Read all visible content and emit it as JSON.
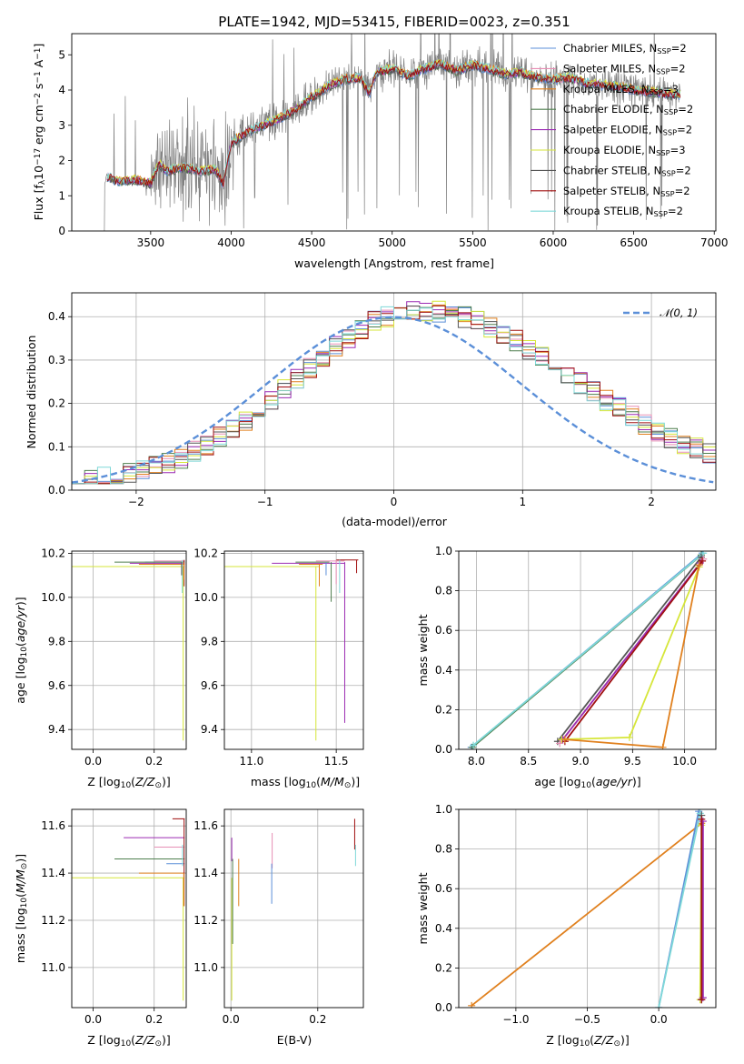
{
  "figure": {
    "title": "PLATE=1942, MJD=53415, FIBERID=0023, z=0.351"
  },
  "chart_data": [
    {
      "type": "line",
      "id": "spectrum",
      "xlabel": "wavelength [Angstrom, rest frame]",
      "ylabel_parts": [
        "Flux [f",
        "λ",
        "10",
        "−17",
        " erg cm",
        "−2",
        " s",
        "−1",
        " A",
        "−1",
        "]"
      ],
      "xlim": [
        3010,
        7010
      ],
      "ylim": [
        0,
        5.6
      ],
      "xticks": [
        3500,
        4000,
        4500,
        5000,
        5500,
        6000,
        6500,
        7000
      ],
      "yticks": [
        0,
        1,
        2,
        3,
        4,
        5
      ],
      "data_color": "#808080",
      "data_range": [
        3210,
        6790
      ],
      "continuum": {
        "x": [
          3210,
          3215,
          3230,
          3300,
          3400,
          3500,
          3550,
          3600,
          3700,
          3800,
          3900,
          3950,
          4000,
          4100,
          4200,
          4300,
          4400,
          4500,
          4600,
          4700,
          4800,
          4860,
          4900,
          5000,
          5100,
          5200,
          5300,
          5400,
          5500,
          5600,
          5700,
          5800,
          5900,
          6000,
          6100,
          6200,
          6300,
          6400,
          6500,
          6600,
          6700,
          6790
        ],
        "y": [
          0,
          1.3,
          1.55,
          1.4,
          1.45,
          1.35,
          1.9,
          1.7,
          1.8,
          1.7,
          1.75,
          1.35,
          2.5,
          2.8,
          3.0,
          3.2,
          3.45,
          3.8,
          4.1,
          4.3,
          4.35,
          3.9,
          4.5,
          4.6,
          4.4,
          4.6,
          4.75,
          4.55,
          4.7,
          4.6,
          4.45,
          4.5,
          4.35,
          4.3,
          4.35,
          4.2,
          4.15,
          4.1,
          4.0,
          3.95,
          3.9,
          3.85
        ]
      },
      "models": [
        {
          "name": "Chabrier MILES, N",
          "sub": "SSP",
          "post": "=2",
          "color": "#5b8fd8"
        },
        {
          "name": "Salpeter MILES, N",
          "sub": "SSP",
          "post": "=2",
          "color": "#e78fb5"
        },
        {
          "name": "Kroupa MILES, N",
          "sub": "SSP",
          "post": "=3",
          "color": "#e0801e"
        },
        {
          "name": "Chabrier ELODIE, N",
          "sub": "SSP",
          "post": "=2",
          "color": "#4f7f4f"
        },
        {
          "name": "Salpeter ELODIE, N",
          "sub": "SSP",
          "post": "=2",
          "color": "#9b2bb3"
        },
        {
          "name": "Kroupa ELODIE, N",
          "sub": "SSP",
          "post": "=3",
          "color": "#d6e63a"
        },
        {
          "name": "Chabrier STELIB, N",
          "sub": "SSP",
          "post": "=2",
          "color": "#555555"
        },
        {
          "name": "Salpeter STELIB, N",
          "sub": "SSP",
          "post": "=2",
          "color": "#a01010"
        },
        {
          "name": "Kroupa STELIB, N",
          "sub": "SSP",
          "post": "=2",
          "color": "#7fd8d8"
        }
      ]
    },
    {
      "type": "step-histogram",
      "id": "residuals",
      "xlabel": "(data-model)/error",
      "ylabel": "Normed distribution",
      "xlim": [
        -2.5,
        2.5
      ],
      "ylim": [
        0,
        0.455
      ],
      "xticks": [
        -2,
        -1,
        0,
        1,
        2
      ],
      "yticks": [
        0.0,
        0.1,
        0.2,
        0.3,
        0.4
      ],
      "legend": "𝒩(0, 1)",
      "gaussian_color": "#5b8fd8",
      "bin_width": 0.1
    },
    {
      "type": "errorbar",
      "id": "age-vs-Z",
      "xlabel": "Z [log",
      "xlim": [
        -0.07,
        0.305
      ],
      "ylim": [
        9.31,
        10.21
      ],
      "xticks": [
        0.0,
        0.2
      ],
      "yticks": [
        9.4,
        9.6,
        9.8,
        10.0,
        10.2
      ],
      "ylabel": "age  [log"
    },
    {
      "type": "errorbar",
      "id": "age-vs-mass",
      "xlabel": "mass [log",
      "xlim": [
        10.84,
        11.66
      ],
      "ylim": [
        9.31,
        10.21
      ],
      "xticks": [
        11.0,
        11.5
      ],
      "yticks": [
        9.4,
        9.6,
        9.8,
        10.0,
        10.2
      ]
    },
    {
      "type": "line",
      "id": "weight-vs-age",
      "xlabel": "age  [log",
      "ylabel": "mass weight",
      "xlim": [
        7.83,
        10.3
      ],
      "ylim": [
        0,
        1.0
      ],
      "xticks": [
        8.0,
        8.5,
        9.0,
        9.5,
        10.0
      ],
      "yticks": [
        0.0,
        0.2,
        0.4,
        0.6,
        0.8,
        1.0
      ]
    },
    {
      "type": "errorbar",
      "id": "mass-vs-Z",
      "xlabel": "Z [log",
      "ylabel": "mass [log",
      "xlim": [
        -0.07,
        0.305
      ],
      "ylim": [
        10.83,
        11.67
      ],
      "xticks": [
        0.0,
        0.2
      ],
      "yticks": [
        11.0,
        11.2,
        11.4,
        11.6
      ]
    },
    {
      "type": "errorbar",
      "id": "mass-vs-EBV",
      "xlabel": "E(B-V)",
      "xlim": [
        -0.015,
        0.305
      ],
      "ylim": [
        10.83,
        11.67
      ],
      "xticks": [
        0.0,
        0.2
      ],
      "yticks": [
        11.0,
        11.2,
        11.4,
        11.6
      ]
    },
    {
      "type": "line",
      "id": "weight-vs-Z",
      "xlabel": "Z [log",
      "ylabel": "mass weight",
      "xlim": [
        -1.4,
        0.4
      ],
      "ylim": [
        0,
        1.0
      ],
      "xticks": [
        -1.0,
        -0.5,
        0.0
      ],
      "yticks": [
        0.0,
        0.2,
        0.4,
        0.6,
        0.8,
        1.0
      ]
    }
  ]
}
